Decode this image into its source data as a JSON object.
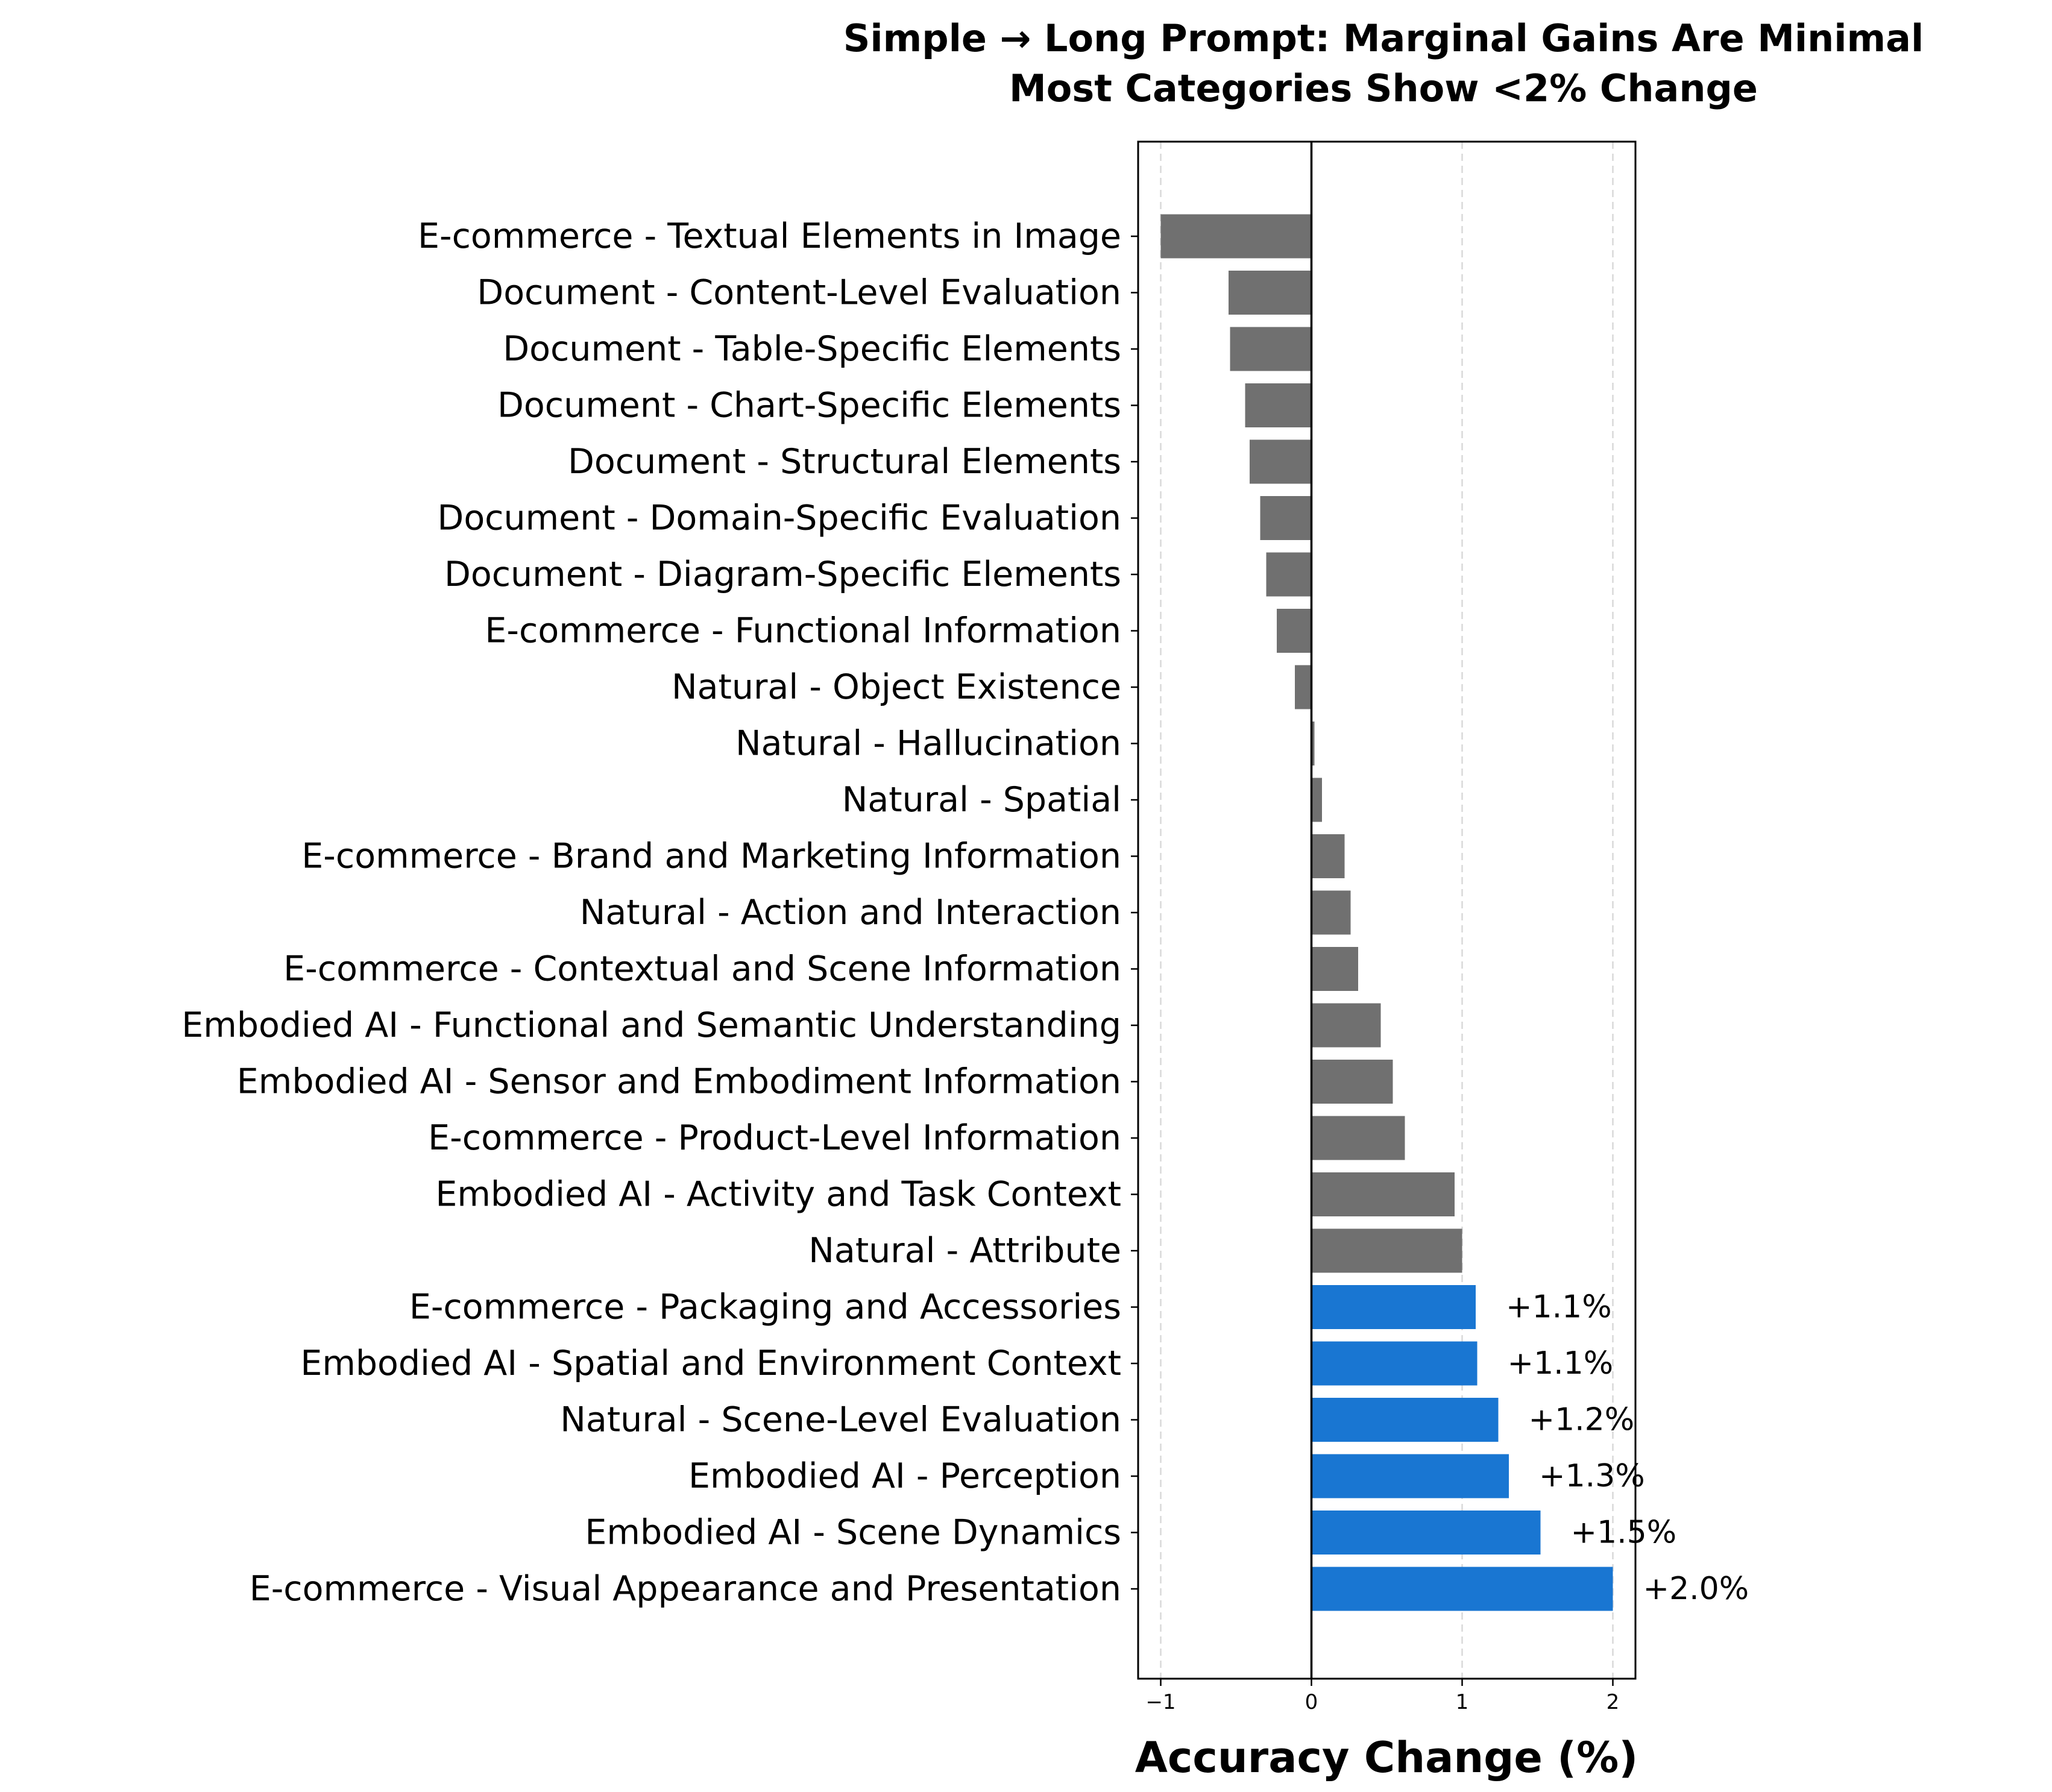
{
  "chart_data": {
    "type": "bar",
    "orientation": "horizontal",
    "title": "Simple → Long Prompt: Marginal Gains Are Minimal",
    "subtitle": "Most Categories Show <2% Change",
    "xlabel": "Accuracy Change (%)",
    "ylabel": "",
    "xlim": [
      -1.15,
      2.15
    ],
    "xticks": [
      -1,
      0,
      1,
      2
    ],
    "xtick_labels": [
      "−1",
      "0",
      "1",
      "2"
    ],
    "grid": "vertical dashed",
    "highlight_threshold": 1.05,
    "colors": {
      "highlight": "#1976D2",
      "default": "#707070",
      "zero_line": "#000000",
      "grid": "#d9d9d9"
    },
    "categories": [
      "E-commerce - Textual Elements in Image",
      "Document - Content-Level Evaluation",
      "Document - Table-Specific Elements",
      "Document - Chart-Specific Elements",
      "Document - Structural Elements",
      "Document - Domain-Specific Evaluation",
      "Document - Diagram-Specific Elements",
      "E-commerce - Functional Information",
      "Natural - Object Existence",
      "Natural - Hallucination",
      "Natural - Spatial",
      "E-commerce - Brand and Marketing Information",
      "Natural - Action and Interaction",
      "E-commerce - Contextual and Scene Information",
      "Embodied AI - Functional and Semantic Understanding",
      "Embodied AI - Sensor and Embodiment Information",
      "E-commerce - Product-Level Information",
      "Embodied AI - Activity and Task Context",
      "Natural - Attribute",
      "E-commerce - Packaging and Accessories",
      "Embodied AI - Spatial and Environment Context",
      "Natural - Scene-Level Evaluation",
      "Embodied AI - Perception",
      "Embodied AI - Scene Dynamics",
      "E-commerce - Visual Appearance and Presentation"
    ],
    "values": [
      -1.0,
      -0.55,
      -0.54,
      -0.44,
      -0.41,
      -0.34,
      -0.3,
      -0.23,
      -0.11,
      0.02,
      0.07,
      0.22,
      0.26,
      0.31,
      0.46,
      0.54,
      0.62,
      0.95,
      1.0,
      1.09,
      1.1,
      1.24,
      1.31,
      1.52,
      2.0
    ],
    "data_labels": [
      "",
      "",
      "",
      "",
      "",
      "",
      "",
      "",
      "",
      "",
      "",
      "",
      "",
      "",
      "",
      "",
      "",
      "",
      "",
      "+1.1%",
      "+1.1%",
      "+1.2%",
      "+1.3%",
      "+1.5%",
      "+2.0%"
    ]
  }
}
